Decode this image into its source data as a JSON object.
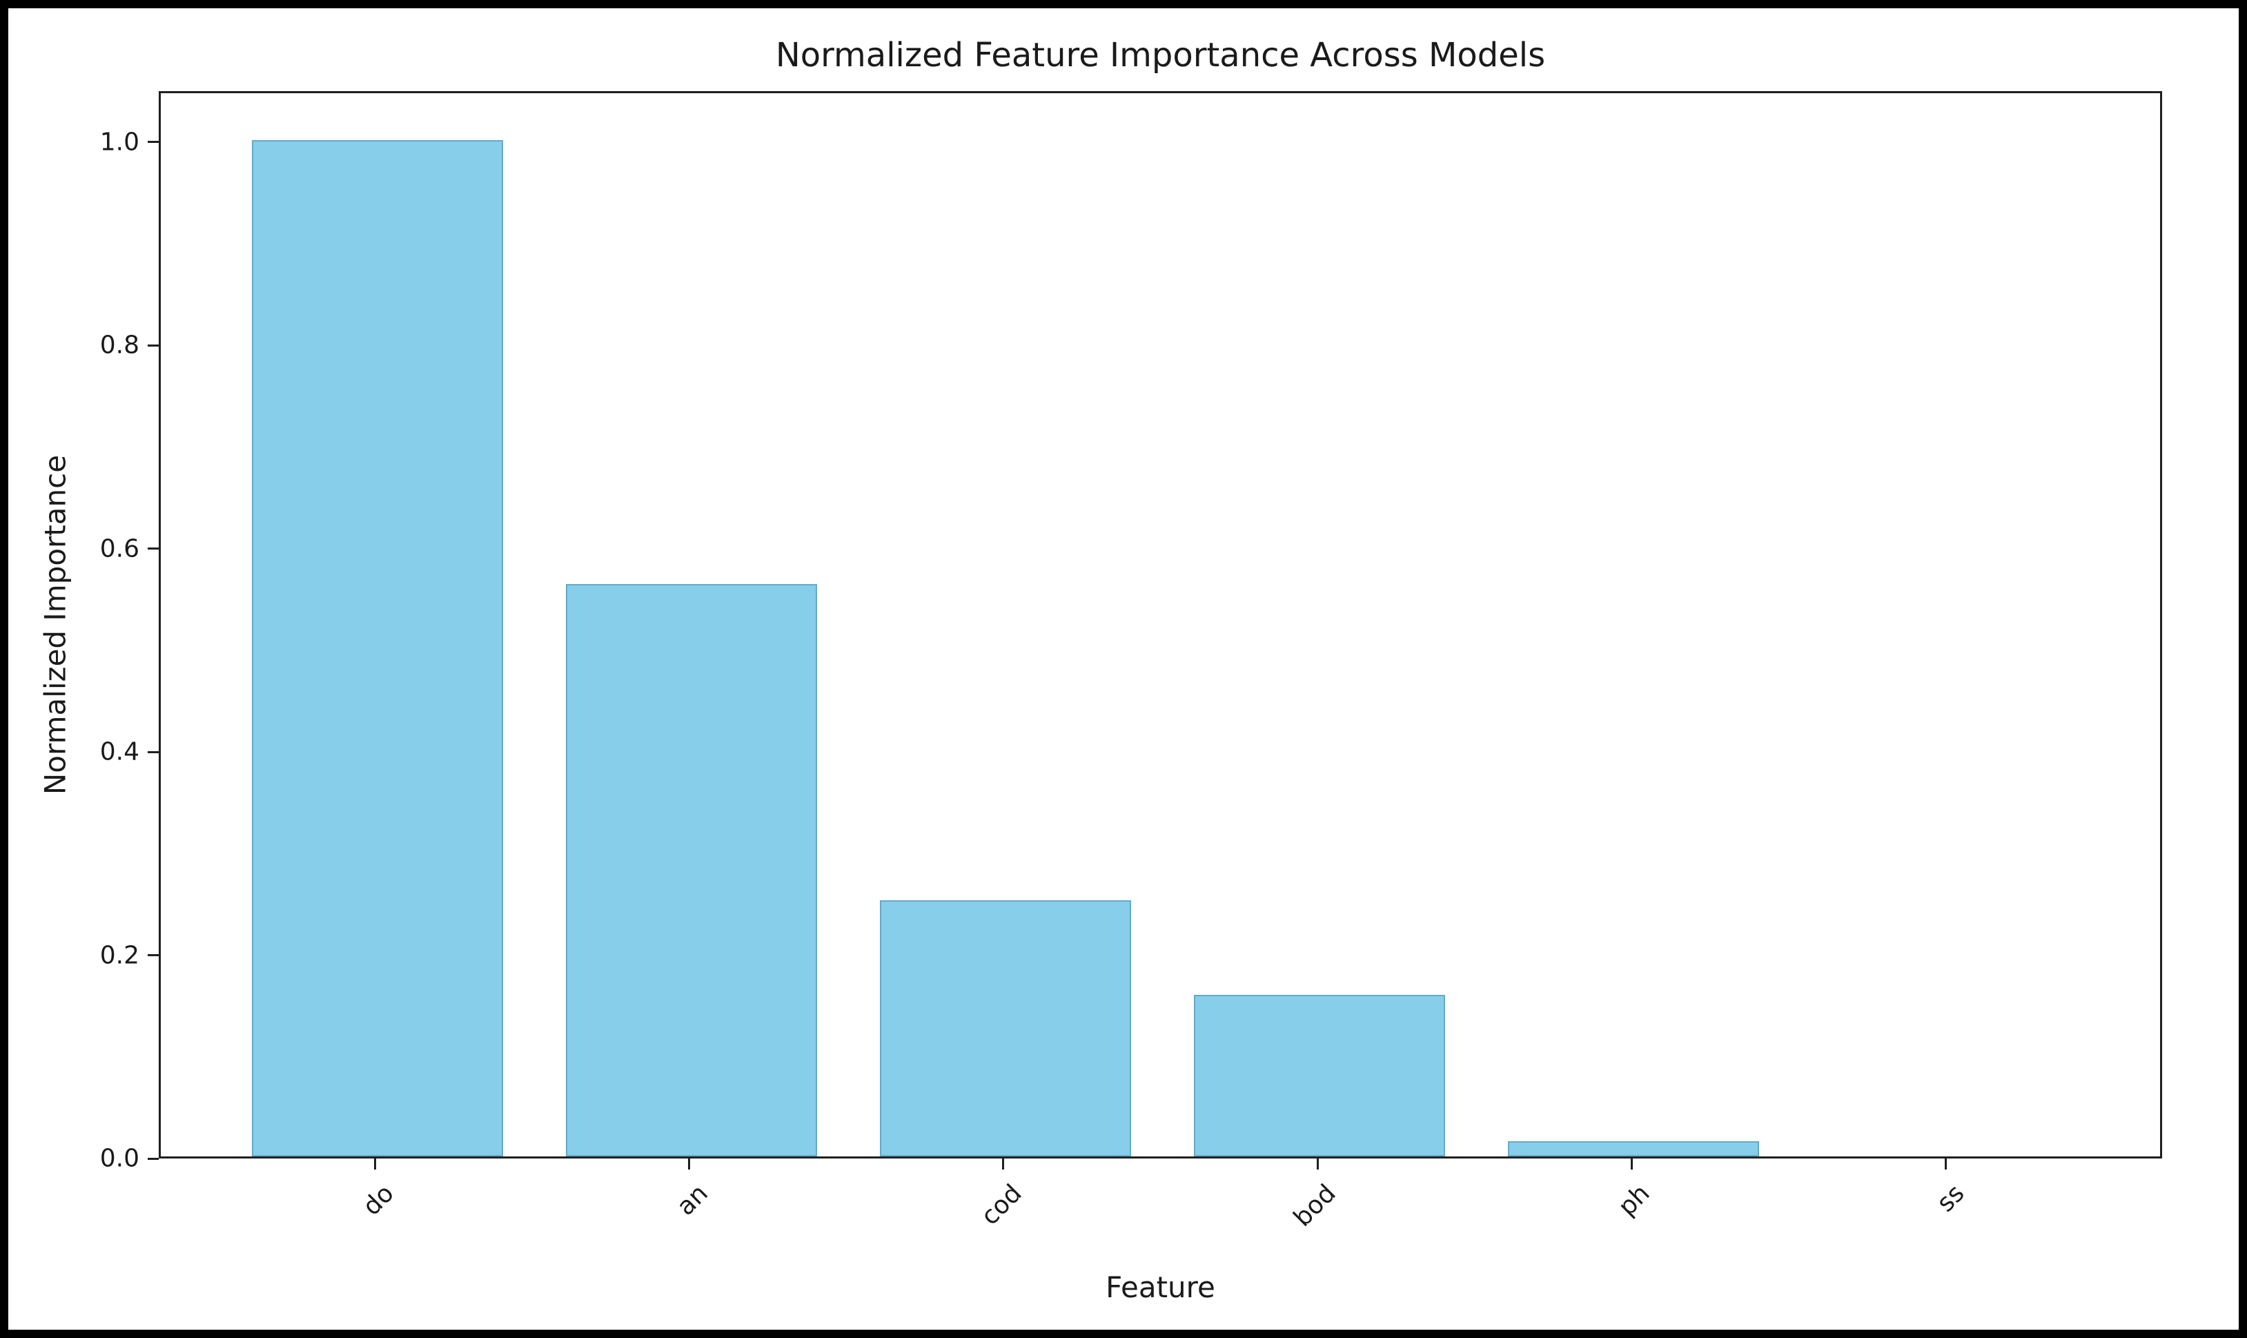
{
  "figure": {
    "background_color": "#ffffff",
    "frame_color": "#000000"
  },
  "chart_data": {
    "type": "bar",
    "title": "Normalized Feature Importance Across Models",
    "xlabel": "Feature",
    "ylabel": "Normalized Importance",
    "categories": [
      "do",
      "an",
      "cod",
      "bod",
      "ph",
      "ss"
    ],
    "values": [
      1.0,
      0.563,
      0.252,
      0.159,
      0.015,
      0.0
    ],
    "yticks": [
      "0.0",
      "0.2",
      "0.4",
      "0.6",
      "0.8",
      "1.0"
    ],
    "ylim": [
      0,
      1.05
    ],
    "bar_color": "#87CEEB",
    "bar_edge_color": "rgba(49,116,153,0.4)",
    "axis_color": "#1f1f1f",
    "xtick_rotation": 45,
    "grid": false,
    "legend": null
  }
}
